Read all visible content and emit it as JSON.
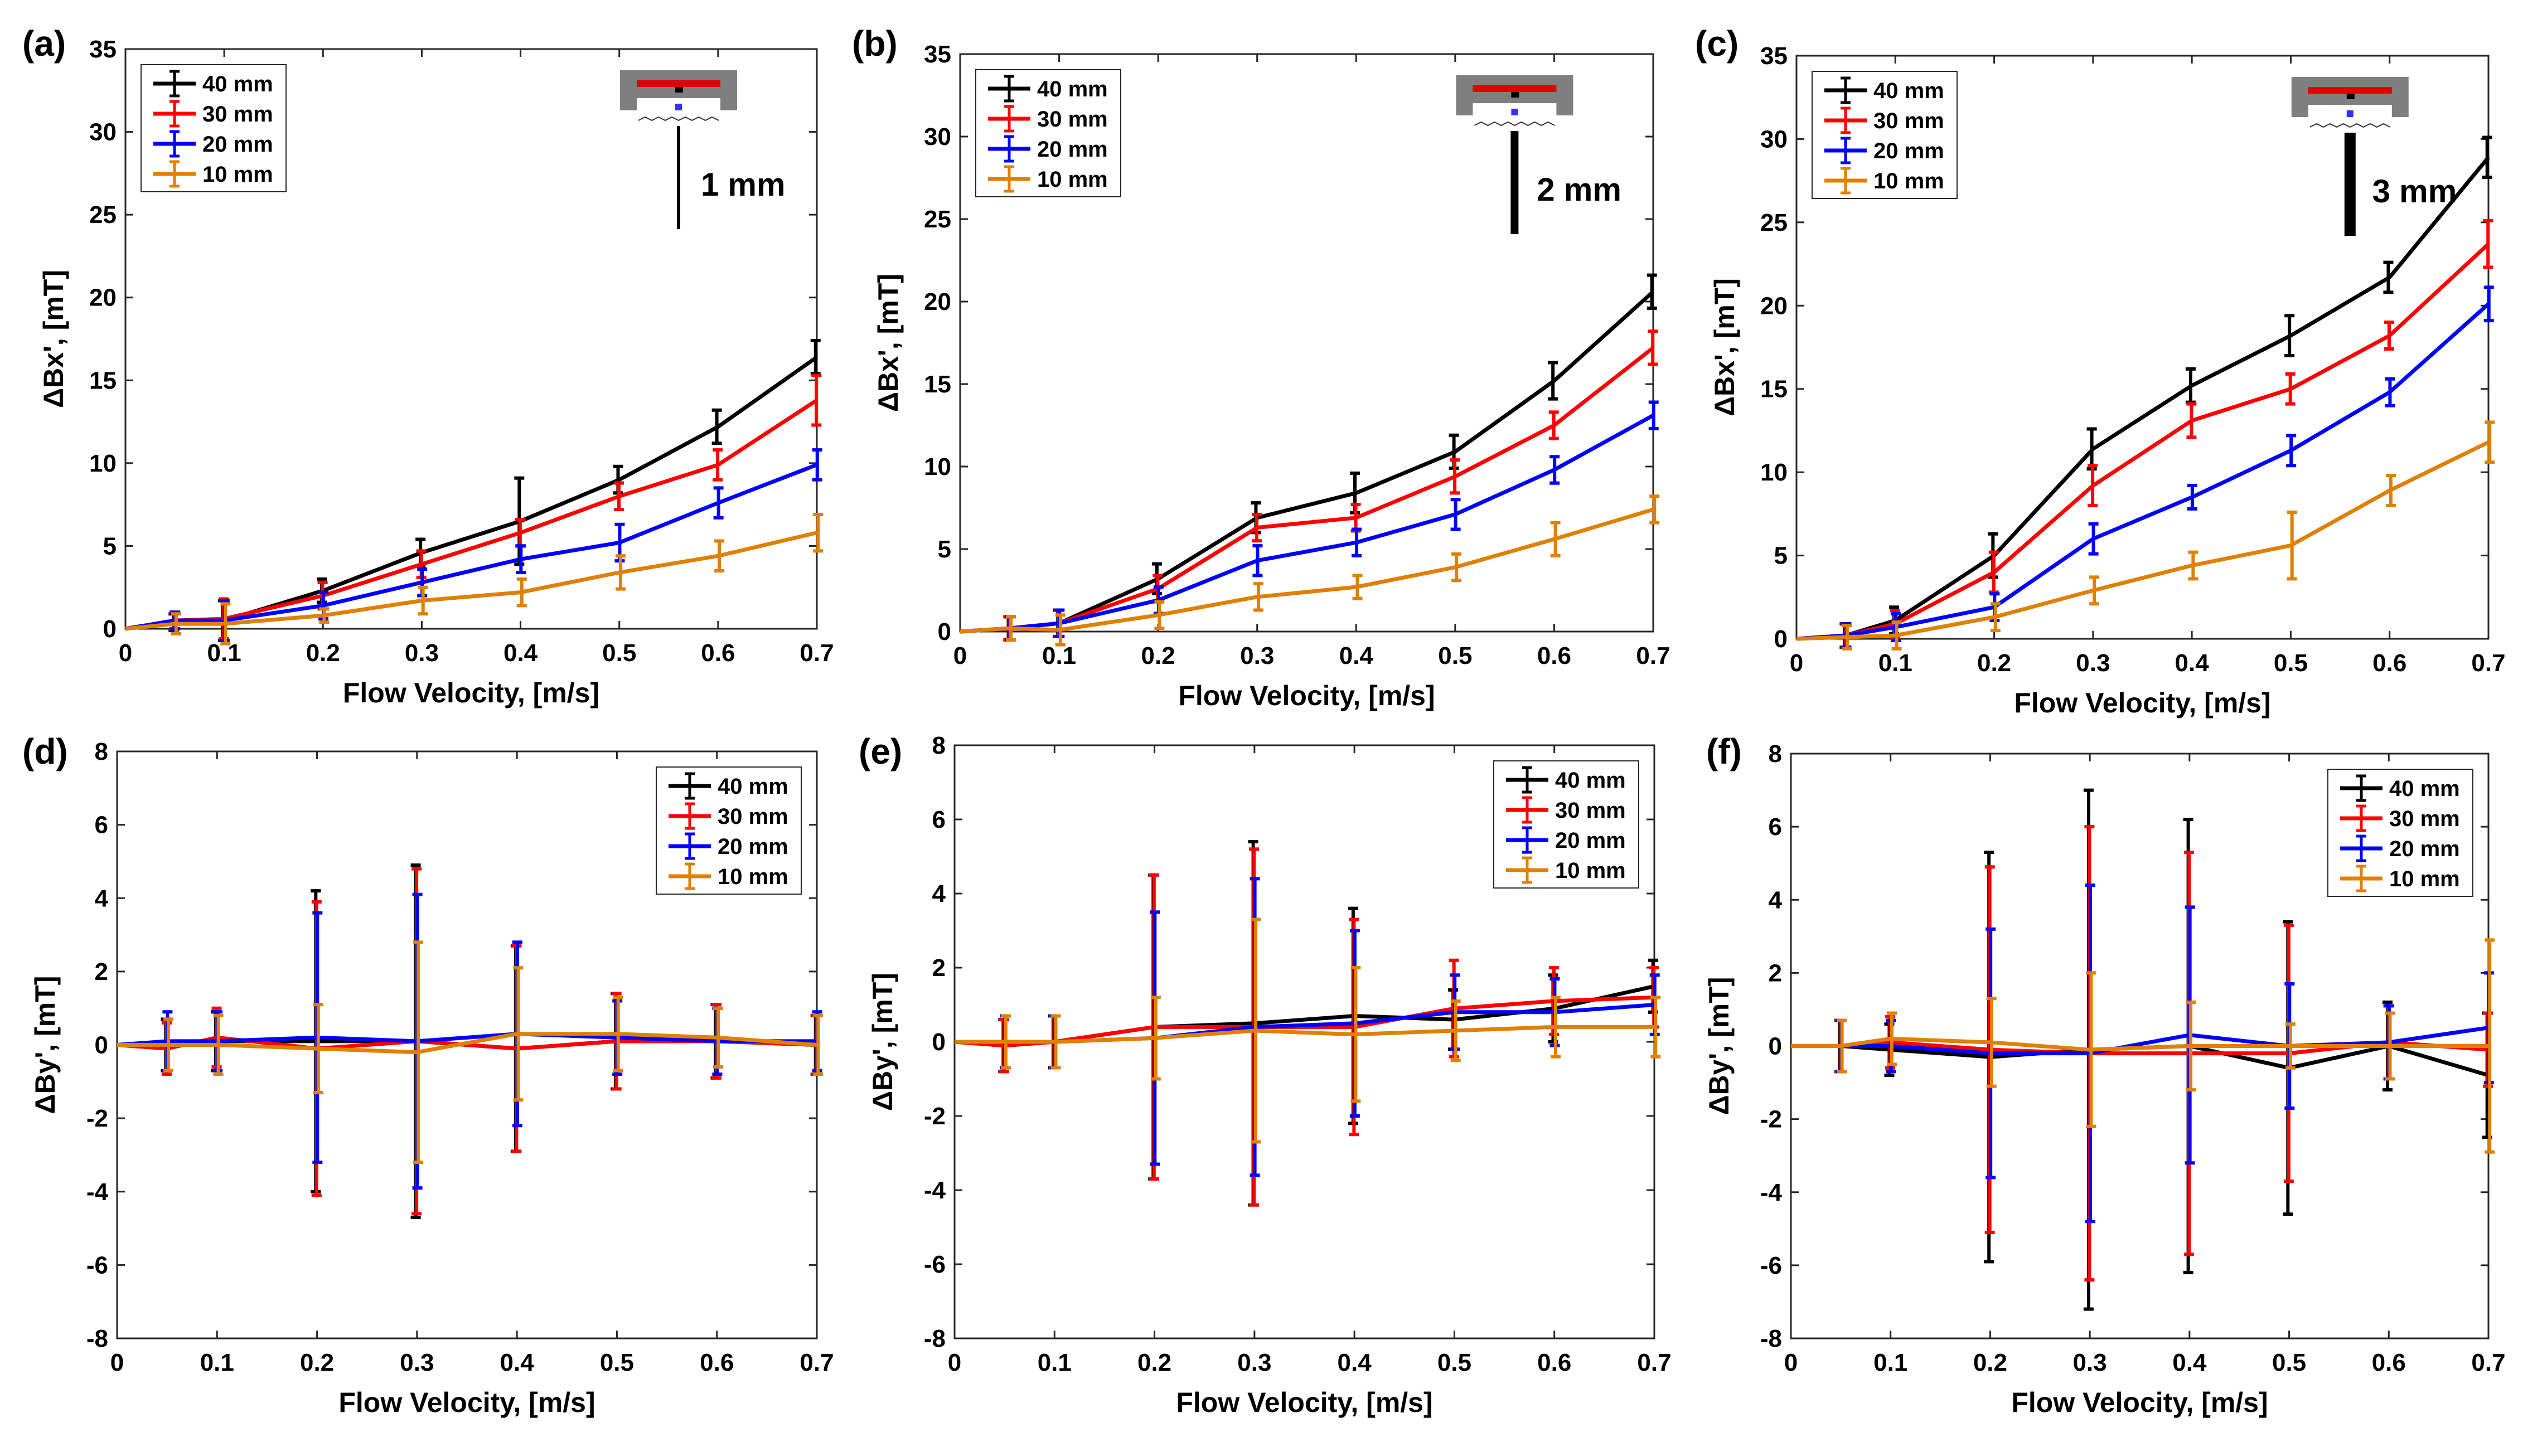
{
  "chart_data": [
    {
      "panel": "(a)",
      "type": "line",
      "xlabel": "Flow Velocity, [m/s]",
      "ylabel": "ΔBx', [mT]",
      "xlim": [
        0,
        0.7
      ],
      "ylim": [
        0,
        35
      ],
      "xticks": [
        "0",
        "0.1",
        "0.2",
        "0.3",
        "0.4",
        "0.5",
        "0.6",
        "0.7"
      ],
      "yticks": [
        "0",
        "5",
        "10",
        "15",
        "20",
        "25",
        "30",
        "35"
      ],
      "legend_position": "top-left",
      "inset_scale_label": "1 mm",
      "x": [
        0,
        0.05,
        0.1,
        0.2,
        0.3,
        0.4,
        0.5,
        0.6,
        0.7
      ],
      "series": [
        {
          "name": "40 mm",
          "color": "#000000",
          "values": [
            0,
            0.4,
            0.5,
            2.3,
            4.6,
            6.5,
            9.0,
            12.2,
            16.4
          ],
          "err": [
            0,
            0.5,
            1.2,
            0.7,
            0.8,
            2.6,
            0.8,
            1.0,
            1.0
          ]
        },
        {
          "name": "30 mm",
          "color": "#ff0000",
          "values": [
            0,
            0.5,
            0.6,
            2.0,
            3.9,
            5.8,
            8.0,
            9.9,
            13.8
          ],
          "err": [
            0,
            0.5,
            1.2,
            0.8,
            0.8,
            0.8,
            0.8,
            0.9,
            1.5
          ]
        },
        {
          "name": "20 mm",
          "color": "#0000ff",
          "values": [
            0,
            0.5,
            0.5,
            1.4,
            2.8,
            4.2,
            5.2,
            7.6,
            9.9
          ],
          "err": [
            0,
            0.5,
            1.2,
            0.8,
            0.8,
            0.8,
            1.1,
            0.9,
            0.9
          ]
        },
        {
          "name": "10 mm",
          "color": "#e08000",
          "values": [
            0,
            0.3,
            0.3,
            0.8,
            1.7,
            2.2,
            3.4,
            4.4,
            5.8
          ],
          "err": [
            0,
            0.6,
            1.2,
            0.4,
            0.8,
            0.8,
            1.0,
            0.9,
            1.1
          ]
        }
      ]
    },
    {
      "panel": "(b)",
      "type": "line",
      "xlabel": "Flow Velocity, [m/s]",
      "ylabel": "ΔBx', [mT]",
      "xlim": [
        0,
        0.7
      ],
      "ylim": [
        0,
        35
      ],
      "xticks": [
        "0",
        "0.1",
        "0.2",
        "0.3",
        "0.4",
        "0.5",
        "0.6",
        "0.7"
      ],
      "yticks": [
        "0",
        "5",
        "10",
        "15",
        "20",
        "25",
        "30",
        "35"
      ],
      "legend_position": "top-left",
      "inset_scale_label": "2 mm",
      "x": [
        0,
        0.05,
        0.1,
        0.2,
        0.3,
        0.4,
        0.5,
        0.6,
        0.7
      ],
      "series": [
        {
          "name": "40 mm",
          "color": "#000000",
          "values": [
            0,
            0.2,
            0.5,
            3.2,
            6.9,
            8.4,
            10.9,
            15.2,
            20.6
          ],
          "err": [
            0,
            0.7,
            0.8,
            0.9,
            0.9,
            1.2,
            1.0,
            1.1,
            1.0
          ]
        },
        {
          "name": "30 mm",
          "color": "#ff0000",
          "values": [
            0,
            0.2,
            0.5,
            2.6,
            6.3,
            6.9,
            9.4,
            12.5,
            17.2
          ],
          "err": [
            0,
            0.7,
            0.8,
            0.8,
            0.8,
            0.8,
            1.0,
            0.8,
            1.0
          ]
        },
        {
          "name": "20 mm",
          "color": "#0000ff",
          "values": [
            0,
            0.2,
            0.5,
            1.9,
            4.3,
            5.4,
            7.1,
            9.8,
            13.1
          ],
          "err": [
            0,
            0.7,
            0.8,
            0.8,
            0.9,
            0.8,
            0.9,
            0.8,
            0.8
          ]
        },
        {
          "name": "10 mm",
          "color": "#e08000",
          "values": [
            0,
            0.2,
            0.1,
            1.0,
            2.1,
            2.7,
            3.9,
            5.6,
            7.4
          ],
          "err": [
            0,
            0.7,
            0.9,
            0.8,
            0.8,
            0.7,
            0.8,
            1.0,
            0.8
          ]
        }
      ]
    },
    {
      "panel": "(c)",
      "type": "line",
      "xlabel": "Flow Velocity, [m/s]",
      "ylabel": "ΔBx', [mT]",
      "xlim": [
        0,
        0.7
      ],
      "ylim": [
        0,
        35
      ],
      "xticks": [
        "0",
        "0.1",
        "0.2",
        "0.3",
        "0.4",
        "0.5",
        "0.6",
        "0.7"
      ],
      "yticks": [
        "0",
        "5",
        "10",
        "15",
        "20",
        "25",
        "30",
        "35"
      ],
      "legend_position": "top-left",
      "inset_scale_label": "3 mm",
      "x": [
        0,
        0.05,
        0.1,
        0.2,
        0.3,
        0.4,
        0.5,
        0.6,
        0.7
      ],
      "series": [
        {
          "name": "40 mm",
          "color": "#000000",
          "values": [
            0,
            0.2,
            1.1,
            5.0,
            11.4,
            15.2,
            18.2,
            21.7,
            28.9
          ],
          "err": [
            0,
            0.7,
            0.8,
            1.3,
            1.2,
            1.0,
            1.2,
            0.9,
            1.2
          ]
        },
        {
          "name": "30 mm",
          "color": "#ff0000",
          "values": [
            0,
            0.2,
            0.9,
            4.0,
            9.2,
            13.1,
            15.0,
            18.2,
            23.7
          ],
          "err": [
            0,
            0.7,
            0.8,
            1.2,
            1.2,
            1.0,
            0.9,
            0.8,
            1.4
          ]
        },
        {
          "name": "20 mm",
          "color": "#0000ff",
          "values": [
            0,
            0.2,
            0.7,
            1.9,
            6.0,
            8.5,
            11.3,
            14.8,
            20.1
          ],
          "err": [
            0,
            0.7,
            0.8,
            0.8,
            0.9,
            0.7,
            0.9,
            0.8,
            1.0
          ]
        },
        {
          "name": "10 mm",
          "color": "#e08000",
          "values": [
            0,
            0.1,
            0.2,
            1.3,
            2.9,
            4.4,
            5.6,
            8.9,
            11.8
          ],
          "err": [
            0,
            0.7,
            0.8,
            0.8,
            0.8,
            0.8,
            2.0,
            0.9,
            1.2
          ]
        }
      ]
    },
    {
      "panel": "(d)",
      "type": "line",
      "xlabel": "Flow Velocity, [m/s]",
      "ylabel": "ΔBy', [mT]",
      "xlim": [
        0,
        0.7
      ],
      "ylim": [
        -8,
        8
      ],
      "xticks": [
        "0",
        "0.1",
        "0.2",
        "0.3",
        "0.4",
        "0.5",
        "0.6",
        "0.7"
      ],
      "yticks": [
        "-8",
        "-6",
        "-4",
        "-2",
        "0",
        "2",
        "4",
        "6",
        "8"
      ],
      "legend_position": "top-right",
      "x": [
        0,
        0.05,
        0.1,
        0.2,
        0.3,
        0.4,
        0.5,
        0.6,
        0.7
      ],
      "series": [
        {
          "name": "40 mm",
          "color": "#000000",
          "values": [
            0,
            0.0,
            0.1,
            0.1,
            0.1,
            -0.1,
            0.1,
            0.1,
            0.0
          ],
          "err": [
            0,
            0.7,
            0.8,
            4.1,
            4.8,
            2.8,
            1.3,
            1.0,
            0.8
          ]
        },
        {
          "name": "30 mm",
          "color": "#ff0000",
          "values": [
            0,
            -0.1,
            0.2,
            -0.1,
            0.1,
            -0.1,
            0.1,
            0.1,
            0.0
          ],
          "err": [
            0,
            0.7,
            0.8,
            4.0,
            4.7,
            2.8,
            1.3,
            1.0,
            0.8
          ]
        },
        {
          "name": "20 mm",
          "color": "#0000ff",
          "values": [
            0,
            0.1,
            0.1,
            0.2,
            0.1,
            0.3,
            0.2,
            0.1,
            0.1
          ],
          "err": [
            0,
            0.8,
            0.8,
            3.4,
            4.0,
            2.5,
            1.0,
            0.9,
            0.8
          ]
        },
        {
          "name": "10 mm",
          "color": "#e08000",
          "values": [
            0,
            0.0,
            0.0,
            -0.1,
            -0.2,
            0.3,
            0.3,
            0.2,
            0.0
          ],
          "err": [
            0,
            0.7,
            0.8,
            1.2,
            3.0,
            1.8,
            1.0,
            0.8,
            0.8
          ]
        }
      ]
    },
    {
      "panel": "(e)",
      "type": "line",
      "xlabel": "Flow Velocity, [m/s]",
      "ylabel": "ΔBy', [mT]",
      "xlim": [
        0,
        0.7
      ],
      "ylim": [
        -8,
        8
      ],
      "xticks": [
        "0",
        "0.1",
        "0.2",
        "0.3",
        "0.4",
        "0.5",
        "0.6",
        "0.7"
      ],
      "yticks": [
        "-8",
        "-6",
        "-4",
        "-2",
        "0",
        "2",
        "4",
        "6",
        "8"
      ],
      "legend_position": "top-right",
      "x": [
        0,
        0.05,
        0.1,
        0.2,
        0.3,
        0.4,
        0.5,
        0.6,
        0.7
      ],
      "series": [
        {
          "name": "40 mm",
          "color": "#000000",
          "values": [
            0,
            -0.1,
            0.0,
            0.4,
            0.5,
            0.7,
            0.6,
            0.9,
            1.5
          ],
          "err": [
            0,
            0.7,
            0.7,
            4.1,
            4.9,
            2.9,
            0.8,
            0.9,
            0.7
          ]
        },
        {
          "name": "30 mm",
          "color": "#ff0000",
          "values": [
            0,
            -0.1,
            0.0,
            0.4,
            0.4,
            0.4,
            0.9,
            1.1,
            1.2
          ],
          "err": [
            0,
            0.7,
            0.7,
            4.1,
            4.8,
            2.9,
            1.3,
            0.9,
            0.8
          ]
        },
        {
          "name": "20 mm",
          "color": "#0000ff",
          "values": [
            0,
            0.0,
            0.0,
            0.1,
            0.4,
            0.5,
            0.8,
            0.8,
            1.0
          ],
          "err": [
            0,
            0.7,
            0.7,
            3.4,
            4.0,
            2.5,
            1.0,
            0.9,
            0.8
          ]
        },
        {
          "name": "10 mm",
          "color": "#e08000",
          "values": [
            0,
            0.0,
            0.0,
            0.1,
            0.3,
            0.2,
            0.3,
            0.4,
            0.4
          ],
          "err": [
            0,
            0.7,
            0.7,
            1.1,
            3.0,
            1.8,
            0.8,
            0.8,
            0.8
          ]
        }
      ]
    },
    {
      "panel": "(f)",
      "type": "line",
      "xlabel": "Flow Velocity, [m/s]",
      "ylabel": "ΔBy', [mT]",
      "xlim": [
        0,
        0.7
      ],
      "ylim": [
        -8,
        8
      ],
      "xticks": [
        "0",
        "0.1",
        "0.2",
        "0.3",
        "0.4",
        "0.5",
        "0.6",
        "0.7"
      ],
      "yticks": [
        "-8",
        "-6",
        "-4",
        "-2",
        "0",
        "2",
        "4",
        "6",
        "8"
      ],
      "legend_position": "top-right",
      "x": [
        0,
        0.05,
        0.1,
        0.2,
        0.3,
        0.4,
        0.5,
        0.6,
        0.7
      ],
      "series": [
        {
          "name": "40 mm",
          "color": "#000000",
          "values": [
            0,
            0.0,
            -0.1,
            -0.3,
            -0.1,
            0.0,
            -0.6,
            0.0,
            -0.8
          ],
          "err": [
            0,
            0.7,
            0.7,
            5.6,
            7.1,
            6.2,
            4.0,
            1.2,
            1.7
          ]
        },
        {
          "name": "30 mm",
          "color": "#ff0000",
          "values": [
            0,
            0.0,
            0.1,
            -0.1,
            -0.2,
            -0.2,
            -0.2,
            0.1,
            -0.1
          ],
          "err": [
            0,
            0.7,
            0.7,
            5.0,
            6.2,
            5.5,
            3.5,
            1.0,
            1.0
          ]
        },
        {
          "name": "20 mm",
          "color": "#0000ff",
          "values": [
            0,
            0.0,
            0.0,
            -0.2,
            -0.2,
            0.3,
            0.0,
            0.1,
            0.5
          ],
          "err": [
            0,
            0.7,
            0.7,
            3.4,
            4.6,
            3.5,
            1.7,
            1.0,
            1.5
          ]
        },
        {
          "name": "10 mm",
          "color": "#e08000",
          "values": [
            0,
            0.0,
            0.2,
            0.1,
            -0.1,
            0.0,
            0.0,
            0.0,
            0.0
          ],
          "err": [
            0,
            0.7,
            0.7,
            1.2,
            2.1,
            1.2,
            0.6,
            0.9,
            2.9
          ]
        }
      ]
    }
  ]
}
